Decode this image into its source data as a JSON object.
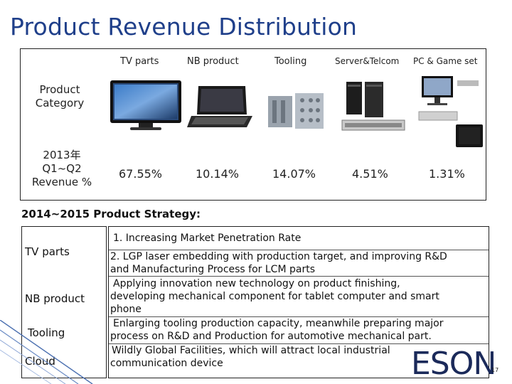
{
  "title": "Product Revenue Distribution",
  "category_table": {
    "headers": [
      "TV parts",
      "NB product",
      "Tooling",
      "Server&Telcom",
      "PC & Game set"
    ],
    "row_label_category": "Product\nCategory",
    "row_label_revenue": "2013年\nQ1~Q2\nRevenue %",
    "revenue": [
      "67.55%",
      "10.14%",
      "14.07%",
      "4.51%",
      "1.31%"
    ],
    "image_icons": [
      "tv-image",
      "laptop-image",
      "tooling-mold-image",
      "server-image",
      "pc-game-console-image"
    ]
  },
  "strategy": {
    "title": "2014~2015 Product Strategy:",
    "labels": [
      "TV  parts",
      "NB product",
      "Tooling",
      "Cloud"
    ],
    "lines": [
      "1.  Increasing Market Penetration Rate",
      "2. LGP laser embedding with production target, and improving R&D",
      "and Manufacturing Process for LCM parts",
      "Applying innovation new technology on product finishing,",
      "developing mechanical component for tablet computer and smart",
      "phone",
      "Enlarging tooling production capacity, meanwhile preparing major",
      "process on R&D and Production for automotive mechanical part.",
      "Wildly Global Facilities, which will attract local industrial",
      "communication device"
    ]
  },
  "logo": "ESON",
  "page_number": "17",
  "colors": {
    "title": "#1f3f8a",
    "accent": "#1b2a5a"
  }
}
